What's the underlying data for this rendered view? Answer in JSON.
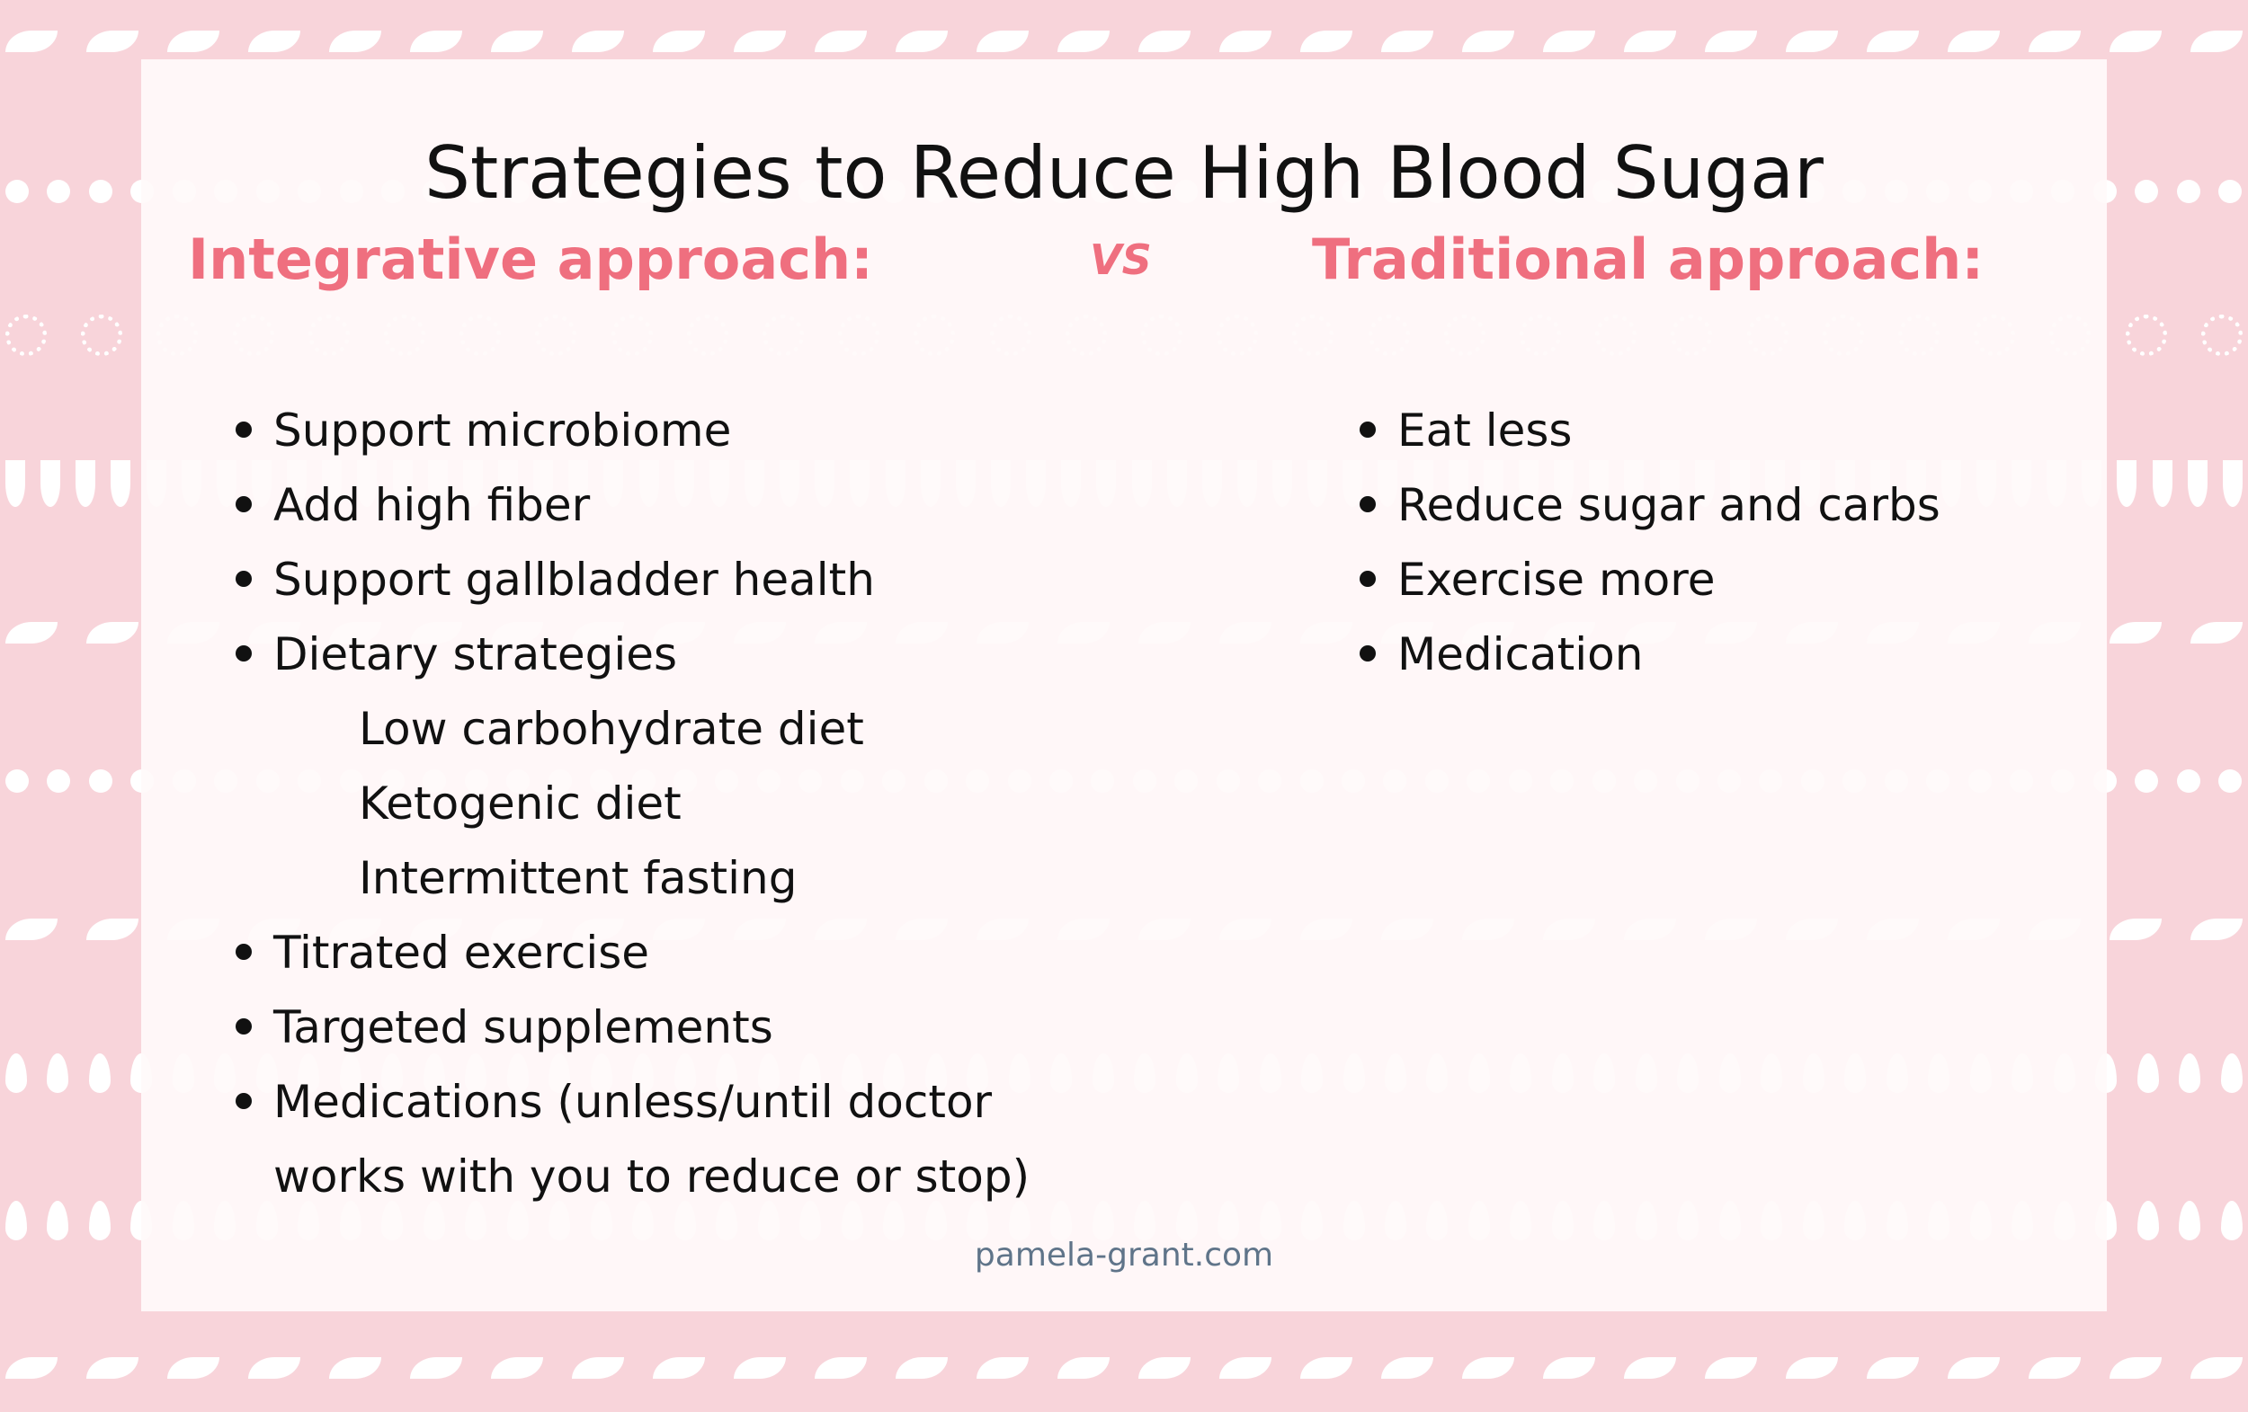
{
  "title": "Strategies to Reduce High Blood Sugar",
  "vs_label": "VS",
  "left": {
    "heading": "Integrative approach:",
    "items": [
      {
        "text": "Support microbiome",
        "bullet": true
      },
      {
        "text": "Add high fiber",
        "bullet": true
      },
      {
        "text": "Support gallbladder health",
        "bullet": true
      },
      {
        "text": "Dietary strategies",
        "bullet": true
      },
      {
        "text": "Low carbohydrate diet",
        "bullet": false
      },
      {
        "text": "Ketogenic diet",
        "bullet": false
      },
      {
        "text": "Intermittent fasting",
        "bullet": false
      },
      {
        "text": "Titrated exercise",
        "bullet": true
      },
      {
        "text": "Targeted supplements",
        "bullet": true
      },
      {
        "text": "Medications (unless/until doctor",
        "bullet": true
      },
      {
        "text": "works with you to reduce or stop)",
        "bullet": false
      }
    ]
  },
  "right": {
    "heading": "Traditional approach:",
    "items": [
      {
        "text": "Eat less",
        "bullet": true
      },
      {
        "text": "Reduce sugar and carbs",
        "bullet": true
      },
      {
        "text": "Exercise more",
        "bullet": true
      },
      {
        "text": "Medication",
        "bullet": true
      }
    ]
  },
  "footer": "pamela-grant.com",
  "colors": {
    "background": "#f8d4da",
    "accent": "#ef6f7f",
    "text": "#111111",
    "footer": "#5f7489"
  }
}
